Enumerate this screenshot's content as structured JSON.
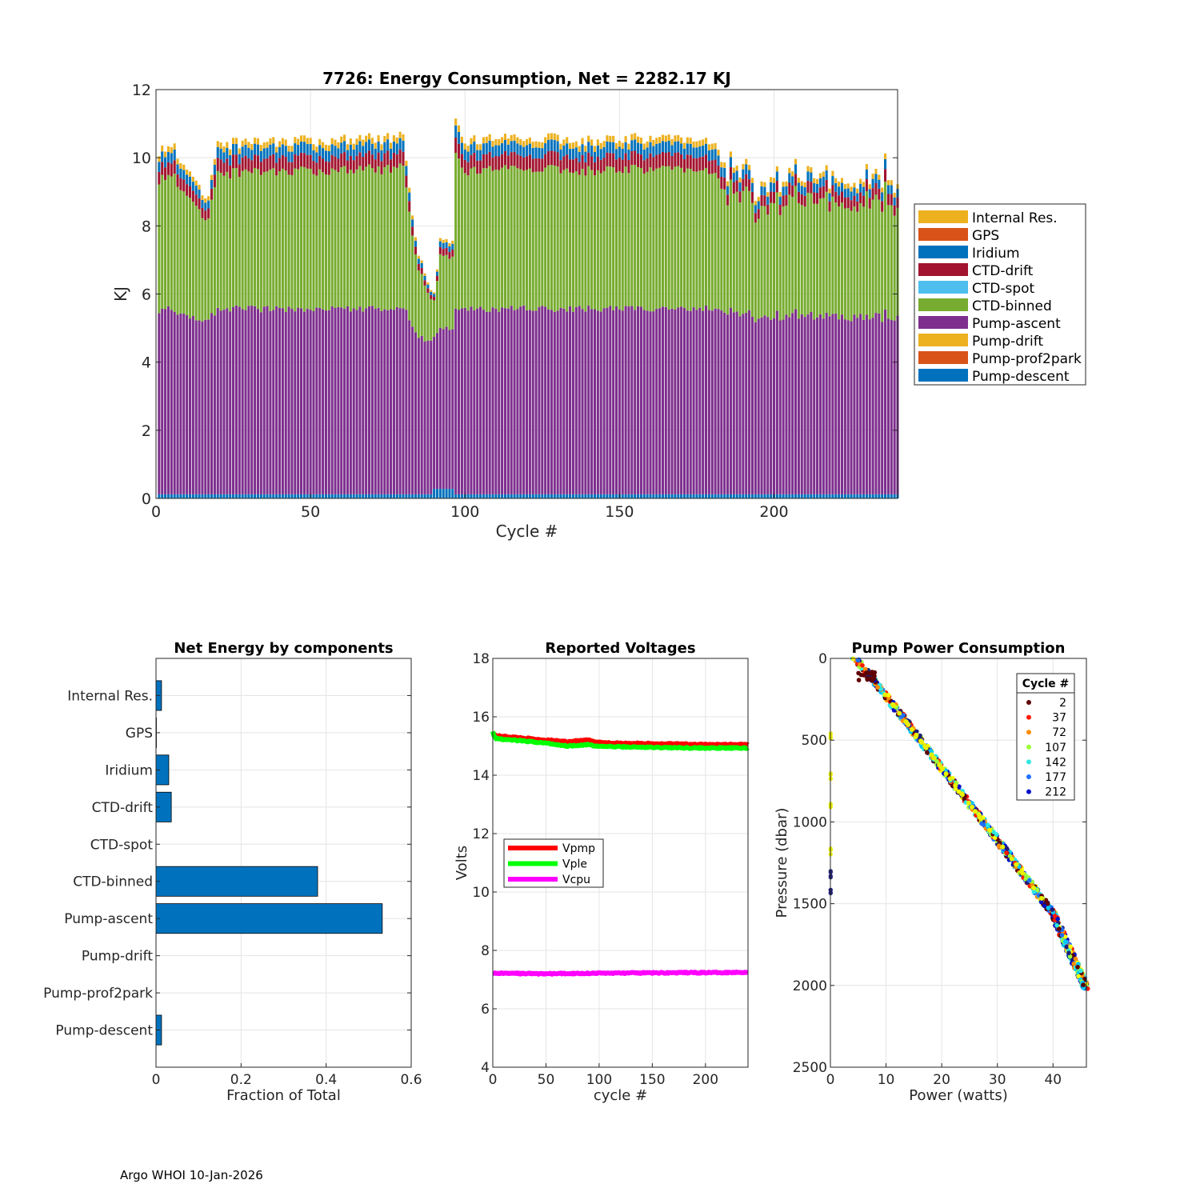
{
  "footer": "Argo WHOI 10-Jan-2026",
  "chart_data": [
    {
      "type": "bar",
      "stacked": true,
      "title": "7726: Energy Consumption,  Net = 2282.17 KJ",
      "xlabel": "Cycle #",
      "ylabel": "KJ",
      "xlim": [
        0,
        240
      ],
      "ylim": [
        0,
        12
      ],
      "xticks": [
        0,
        50,
        100,
        150,
        200
      ],
      "yticks": [
        0,
        2,
        4,
        6,
        8,
        10,
        12
      ],
      "legend_position": "outside-right",
      "legend": [
        "Internal Res.",
        "GPS",
        "Iridium",
        "CTD-drift",
        "CTD-spot",
        "CTD-binned",
        "Pump-ascent",
        "Pump-drift",
        "Pump-prof2park",
        "Pump-descent"
      ],
      "colors": {
        "Internal Res.": "#EDB120",
        "GPS": "#D95319",
        "Iridium": "#0072BD",
        "CTD-drift": "#A2142F",
        "CTD-spot": "#4DBEEE",
        "CTD-binned": "#77AC30",
        "Pump-ascent": "#7E2F8E",
        "Pump-drift": "#EDB120",
        "Pump-prof2park": "#D95319",
        "Pump-descent": "#0072BD"
      },
      "note": "Typical cycle: Pump-descent 0.12, Pump-ascent 5.45, CTD-binned 4.0, CTD-drift 0.38, Iridium 0.3, Internal Res. 0.18 KJ (total ~10.4); dip near cycles 83-96 to ~6-8 KJ; cycles 183-240 vary 8.5-10 KJ.",
      "series_key_points": {
        "cycles": [
          1,
          5,
          17,
          20,
          40,
          60,
          80,
          82,
          85,
          88,
          90,
          92,
          94,
          96,
          97,
          100,
          120,
          140,
          160,
          180,
          185,
          195,
          205,
          215,
          225,
          235,
          240
        ],
        "total_KJ": [
          10.2,
          10.4,
          8.8,
          10.4,
          10.5,
          10.5,
          10.6,
          9.0,
          7.2,
          6.5,
          6.0,
          7.5,
          7.6,
          7.4,
          11.1,
          10.5,
          10.6,
          10.5,
          10.6,
          10.5,
          9.8,
          9.2,
          9.5,
          9.7,
          8.9,
          9.6,
          9.2
        ]
      }
    },
    {
      "type": "bar",
      "orientation": "horizontal",
      "title": "Net Energy by components",
      "xlabel": "Fraction of Total",
      "xlim": [
        0,
        0.6
      ],
      "xticks": [
        0,
        0.2,
        0.4,
        0.6
      ],
      "categories": [
        "Internal Res.",
        "GPS",
        "Iridium",
        "CTD-drift",
        "CTD-spot",
        "CTD-binned",
        "Pump-ascent",
        "Pump-drift",
        "Pump-prof2park",
        "Pump-descent"
      ],
      "values": [
        0.013,
        0.001,
        0.03,
        0.036,
        0.0,
        0.38,
        0.532,
        0.0,
        0.0,
        0.013
      ],
      "color": "#0072BD"
    },
    {
      "type": "line",
      "title": "Reported Voltages",
      "xlabel": "cycle #",
      "ylabel": "Volts",
      "xlim": [
        0,
        240
      ],
      "ylim": [
        4,
        18
      ],
      "xticks": [
        0,
        50,
        100,
        150,
        200
      ],
      "yticks": [
        4,
        6,
        8,
        10,
        12,
        14,
        16,
        18
      ],
      "legend_position": "left-center",
      "series": [
        {
          "name": "Vpmp",
          "color": "#FF0000",
          "x": [
            0,
            1,
            3,
            20,
            50,
            70,
            90,
            95,
            110,
            150,
            200,
            240
          ],
          "y": [
            15.5,
            15.4,
            15.35,
            15.3,
            15.2,
            15.15,
            15.2,
            15.15,
            15.1,
            15.08,
            15.05,
            15.05
          ]
        },
        {
          "name": "Vple",
          "color": "#00FF00",
          "x": [
            0,
            1,
            3,
            20,
            50,
            70,
            90,
            95,
            110,
            150,
            200,
            240
          ],
          "y": [
            15.5,
            15.35,
            15.25,
            15.2,
            15.1,
            15.0,
            15.05,
            15.0,
            14.98,
            14.95,
            14.93,
            14.93
          ]
        },
        {
          "name": "Vcpu",
          "color": "#FF00FF",
          "x": [
            0,
            50,
            100,
            150,
            200,
            240
          ],
          "y": [
            7.22,
            7.2,
            7.22,
            7.23,
            7.24,
            7.25
          ]
        }
      ]
    },
    {
      "type": "scatter",
      "title": "Pump Power Consumption",
      "xlabel": "Power (watts)",
      "ylabel": "Pressure (dbar)",
      "xlim": [
        0,
        46
      ],
      "ylim": [
        2500,
        0
      ],
      "y_reversed": true,
      "xticks": [
        0,
        10,
        20,
        30,
        40
      ],
      "yticks": [
        0,
        500,
        1000,
        1500,
        2000,
        2500
      ],
      "legend_title": "Cycle #",
      "legend_position": "top-right",
      "series": [
        {
          "name": "2",
          "color": "#600000"
        },
        {
          "name": "37",
          "color": "#FF1A00"
        },
        {
          "name": "72",
          "color": "#FF8C00"
        },
        {
          "name": "107",
          "color": "#9BFF3A"
        },
        {
          "name": "142",
          "color": "#2CE8E0"
        },
        {
          "name": "177",
          "color": "#2070FF"
        },
        {
          "name": "212",
          "color": "#0010C8"
        }
      ],
      "trend": {
        "power": [
          4.5,
          10,
          20,
          30,
          40,
          46
        ],
        "pressure": [
          0,
          230,
          670,
          1110,
          1560,
          2020
        ]
      },
      "outliers_zero_power_pressure": [
        470,
        720,
        900,
        1180,
        1320,
        1430
      ]
    }
  ]
}
